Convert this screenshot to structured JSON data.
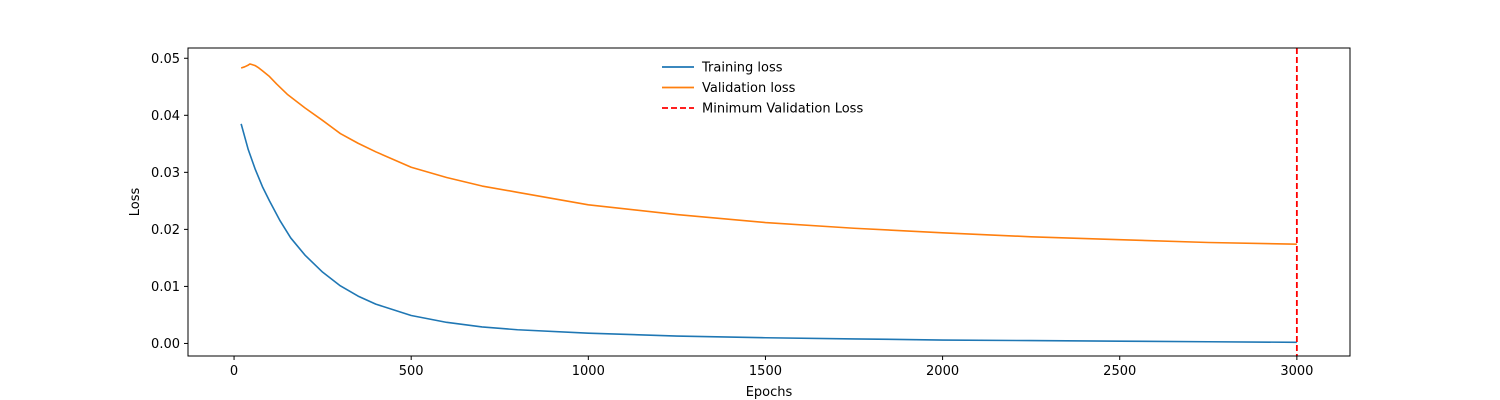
{
  "chart_data": {
    "type": "line",
    "title": "",
    "xlabel": "Epochs",
    "ylabel": "Loss",
    "xlim": [
      -130,
      3150
    ],
    "ylim": [
      -0.0022,
      0.0518
    ],
    "xticks": [
      0,
      500,
      1000,
      1500,
      2000,
      2500,
      3000
    ],
    "xtick_labels": [
      "0",
      "500",
      "1000",
      "1500",
      "2000",
      "2500",
      "3000"
    ],
    "yticks": [
      0.0,
      0.01,
      0.02,
      0.03,
      0.04,
      0.05
    ],
    "ytick_labels": [
      "0.00",
      "0.01",
      "0.02",
      "0.03",
      "0.04",
      "0.05"
    ],
    "grid": false,
    "legend_position": "upper-center",
    "series": [
      {
        "name": "Training loss",
        "color": "#1f77b4",
        "style": "solid",
        "x": [
          20,
          40,
          60,
          80,
          100,
          130,
          160,
          200,
          250,
          300,
          350,
          400,
          500,
          600,
          700,
          800,
          1000,
          1250,
          1500,
          1750,
          2000,
          2250,
          2500,
          2750,
          3000
        ],
        "y": [
          0.0385,
          0.034,
          0.0305,
          0.0275,
          0.025,
          0.0215,
          0.0185,
          0.0155,
          0.0125,
          0.0101,
          0.0083,
          0.0069,
          0.0049,
          0.0037,
          0.0029,
          0.0024,
          0.0018,
          0.0013,
          0.001,
          0.0008,
          0.0006,
          0.0005,
          0.0004,
          0.0003,
          0.0002
        ]
      },
      {
        "name": "Validation loss",
        "color": "#ff7f0e",
        "style": "solid",
        "x": [
          20,
          30,
          40,
          45,
          50,
          60,
          70,
          80,
          100,
          120,
          150,
          200,
          250,
          300,
          350,
          400,
          500,
          600,
          700,
          800,
          1000,
          1250,
          1500,
          1750,
          2000,
          2250,
          2500,
          2750,
          3000
        ],
        "y": [
          0.0483,
          0.0485,
          0.0488,
          0.049,
          0.0489,
          0.0487,
          0.0483,
          0.0478,
          0.0468,
          0.0455,
          0.0437,
          0.0413,
          0.0391,
          0.0368,
          0.0351,
          0.0336,
          0.0309,
          0.0291,
          0.0276,
          0.0265,
          0.0243,
          0.0226,
          0.0212,
          0.0202,
          0.0194,
          0.0187,
          0.0182,
          0.0177,
          0.0174
        ]
      }
    ],
    "vlines": [
      {
        "name": "Minimum Validation Loss",
        "x": 3000,
        "color": "#ff0000",
        "style": "dashed"
      }
    ]
  }
}
